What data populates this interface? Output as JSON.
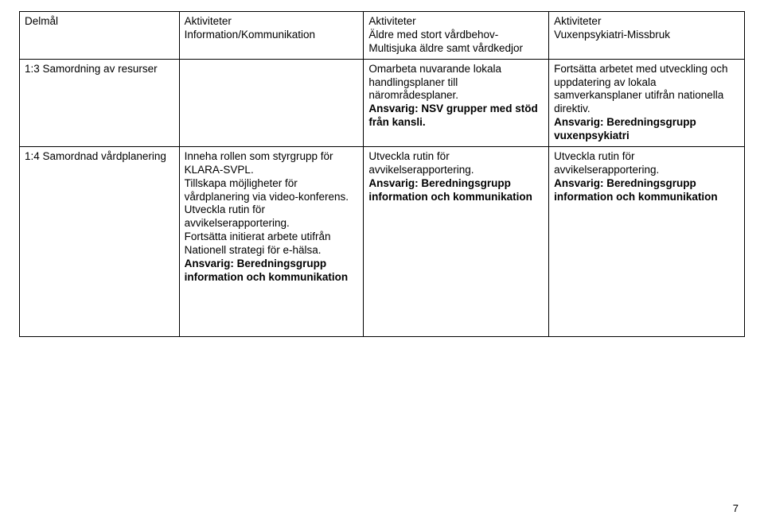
{
  "header": {
    "c1": "Delmål",
    "c2": "Aktiviteter\nInformation/Kommunikation",
    "c3": "Aktiviteter\nÄldre med stort vårdbehov- Multisjuka äldre samt vårdkedjor",
    "c4": "Aktiviteter\nVuxenpsykiatri-Missbruk"
  },
  "row1": {
    "c1": "1:3 Samordning av resurser",
    "c2": "",
    "c3_plain": "Omarbeta nuvarande lokala handlingsplaner till närområdesplaner.",
    "c3_bold": "Ansvarig: NSV grupper med stöd från kansli.",
    "c4_plain": "Fortsätta arbetet med utveckling och uppdatering av lokala samverkansplaner utifrån nationella direktiv.",
    "c4_bold": "Ansvarig: Beredningsgrupp vuxenpsykiatri"
  },
  "row2": {
    "c1": "1:4 Samordnad vårdplanering",
    "c2_plain": "Inneha rollen som styrgrupp för KLARA-SVPL.\nTillskapa möjligheter för vårdplanering via video-konferens.\nUtveckla rutin för avvikelserapportering.\nFortsätta initierat arbete utifrån Nationell strategi för e-hälsa.",
    "c2_bold": "Ansvarig: Beredningsgrupp information och kommunikation",
    "c3_plain": "Utveckla rutin för avvikelserapportering.",
    "c3_bold": "Ansvarig: Beredningsgrupp information och kommunikation",
    "c4_plain": "Utveckla rutin för avvikelserapportering.",
    "c4_bold": "Ansvarig: Beredningsgrupp information och kommunikation"
  },
  "page_number": "7"
}
